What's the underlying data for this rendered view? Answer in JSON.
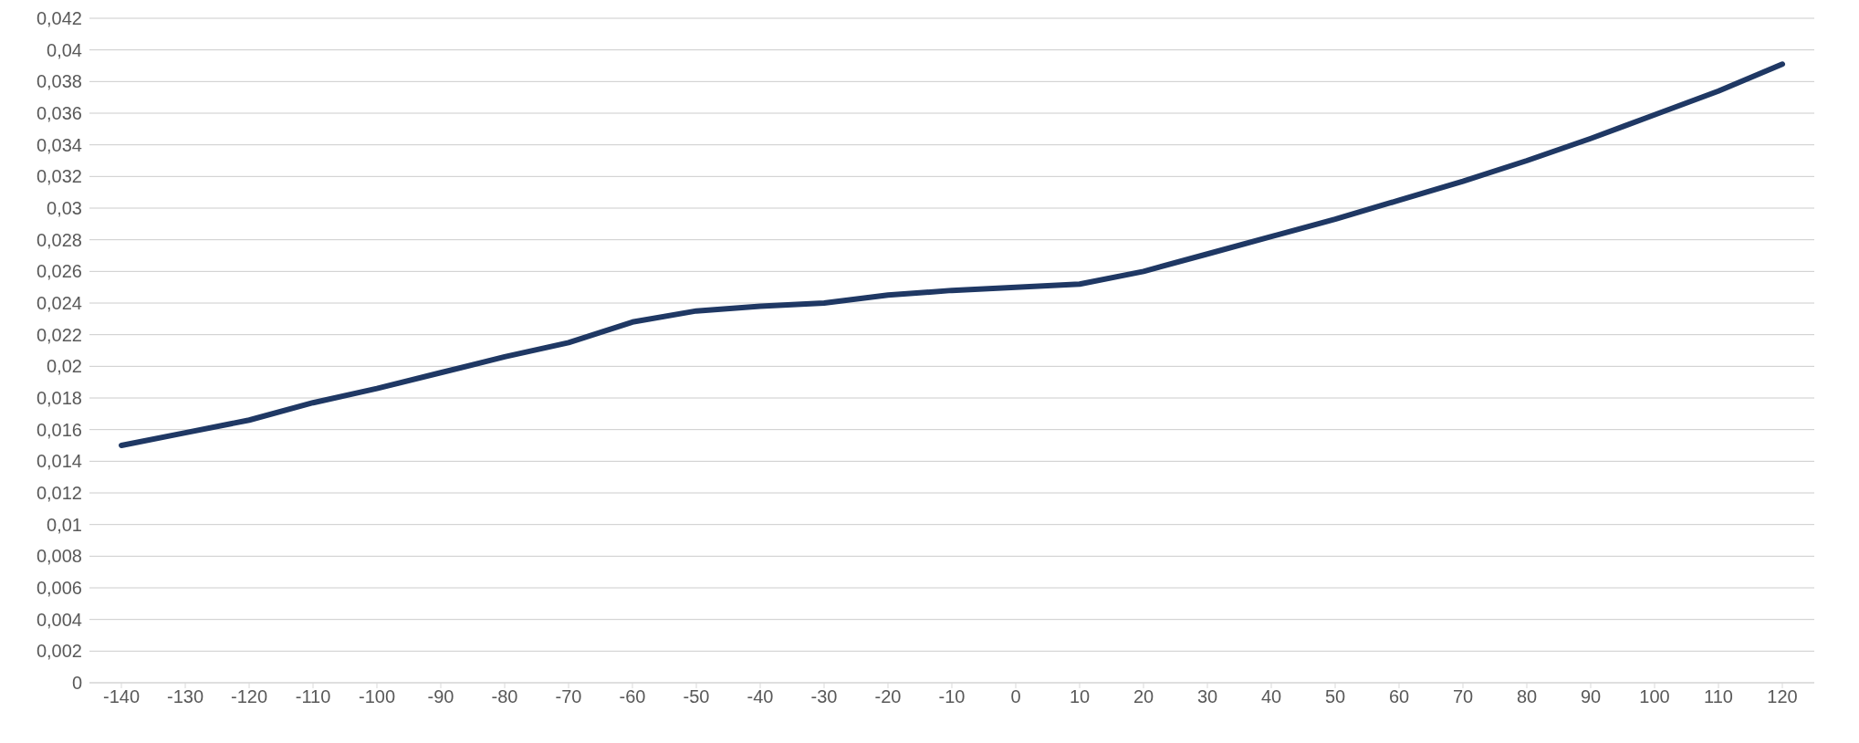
{
  "chart_data": {
    "type": "line",
    "categories": [
      "-140",
      "-130",
      "-120",
      "-110",
      "-100",
      "-90",
      "-80",
      "-70",
      "-60",
      "-50",
      "-40",
      "-30",
      "-20",
      "-10",
      "0",
      "10",
      "20",
      "30",
      "40",
      "50",
      "60",
      "70",
      "80",
      "90",
      "100",
      "110",
      "120"
    ],
    "series": [
      {
        "color": "#1f3864",
        "values": [
          0.015,
          0.0158,
          0.0166,
          0.0177,
          0.0186,
          0.0196,
          0.0206,
          0.0215,
          0.0228,
          0.0235,
          0.0238,
          0.024,
          0.0245,
          0.0248,
          0.025,
          0.0252,
          0.026,
          0.0271,
          0.0282,
          0.0293,
          0.0305,
          0.0317,
          0.033,
          0.0344,
          0.0359,
          0.0374,
          0.0391
        ]
      }
    ],
    "ylim": [
      0,
      0.042
    ],
    "yticks": [
      {
        "value": 0,
        "label": "0"
      },
      {
        "value": 0.002,
        "label": "0,002"
      },
      {
        "value": 0.004,
        "label": "0,004"
      },
      {
        "value": 0.006,
        "label": "0,006"
      },
      {
        "value": 0.008,
        "label": "0,008"
      },
      {
        "value": 0.01,
        "label": "0,01"
      },
      {
        "value": 0.012,
        "label": "0,012"
      },
      {
        "value": 0.014,
        "label": "0,014"
      },
      {
        "value": 0.016,
        "label": "0,016"
      },
      {
        "value": 0.018,
        "label": "0,018"
      },
      {
        "value": 0.02,
        "label": "0,02"
      },
      {
        "value": 0.022,
        "label": "0,022"
      },
      {
        "value": 0.024,
        "label": "0,024"
      },
      {
        "value": 0.026,
        "label": "0,026"
      },
      {
        "value": 0.028,
        "label": "0,028"
      },
      {
        "value": 0.03,
        "label": "0,03"
      },
      {
        "value": 0.032,
        "label": "0,032"
      },
      {
        "value": 0.034,
        "label": "0,034"
      },
      {
        "value": 0.036,
        "label": "0,036"
      },
      {
        "value": 0.038,
        "label": "0,038"
      },
      {
        "value": 0.04,
        "label": "0,04"
      },
      {
        "value": 0.042,
        "label": "0,042"
      }
    ],
    "grid": "y",
    "marker": "none",
    "line_style": "solid",
    "legend": false
  }
}
